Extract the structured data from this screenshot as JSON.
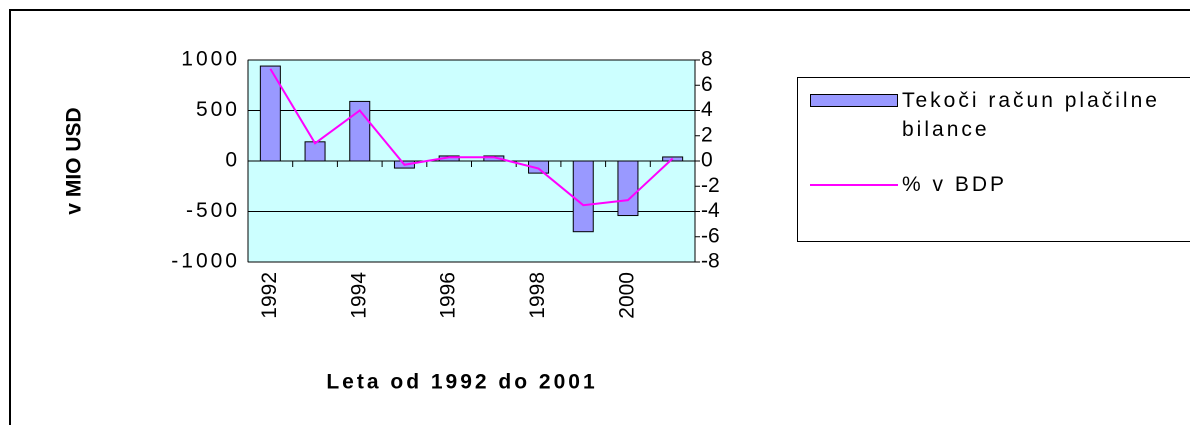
{
  "chart_data": {
    "type": "bar_line",
    "ylabel": "v MIO USD",
    "xlabel": "Leta od 1992 do 2001",
    "categories": [
      "1992",
      null,
      "1994",
      null,
      "1996",
      null,
      "1998",
      null,
      "2000",
      null
    ],
    "series": [
      {
        "name": "Tekoči račun plačilne bilance",
        "type": "bar",
        "color": "#9999ff",
        "values": [
          940,
          190,
          590,
          -70,
          50,
          50,
          -120,
          -700,
          -540,
          40
        ]
      },
      {
        "name": "% v BDP",
        "type": "line",
        "axis": "y2",
        "color": "#ff00ff",
        "values": [
          7.3,
          1.4,
          4.0,
          -0.3,
          0.3,
          0.3,
          -0.6,
          -3.5,
          -3.1,
          0.2
        ]
      }
    ],
    "ylim": [
      -1000,
      1000
    ],
    "yticks": [
      -1000,
      -500,
      0,
      500,
      1000
    ],
    "y2lim": [
      -8,
      8
    ],
    "y2ticks": [
      -8,
      -6,
      -4,
      -2,
      0,
      2,
      4,
      6,
      8
    ],
    "grid": true
  }
}
